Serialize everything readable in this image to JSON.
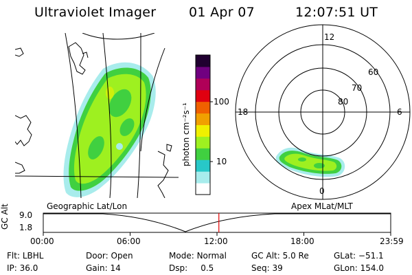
{
  "header": {
    "instrument": "Ultraviolet Imager",
    "date": "01 Apr 07",
    "time": "12:07:51 UT"
  },
  "colorbar": {
    "unit_label": "photon cm⁻²s⁻¹",
    "ticks": [
      {
        "value": 100,
        "label": "100"
      },
      {
        "value": 10,
        "label": "10"
      }
    ],
    "colors": [
      "#ffffff",
      "#a8ecec",
      "#28c8c8",
      "#40d040",
      "#9ef020",
      "#f0f000",
      "#f0a000",
      "#f06000",
      "#e00010",
      "#b00058",
      "#700080",
      "#200030"
    ]
  },
  "map_labels": {
    "geographic": "Geographic Lat/Lon",
    "apex": "Apex MLat/MLT"
  },
  "polar": {
    "mlt_labels": [
      {
        "hour": 12,
        "label": "12"
      },
      {
        "hour": 18,
        "label": "18"
      },
      {
        "hour": 6,
        "label": "6"
      },
      {
        "hour": 0,
        "label": "0"
      }
    ],
    "lat_labels": [
      {
        "lat": 60,
        "label": "60"
      },
      {
        "lat": 70,
        "label": "70"
      },
      {
        "lat": 80,
        "label": "80"
      }
    ]
  },
  "timeline": {
    "axis_label": "GC Alt",
    "y_ticks": [
      "9.0",
      "1.8"
    ],
    "y_range": [
      1.8,
      9.0
    ],
    "x_ticks": [
      "00:00",
      "06:00",
      "12:00",
      "18:00",
      "23:59"
    ],
    "current_time_hours": 12.13,
    "marker_color": "#e00000"
  },
  "info": {
    "row1": [
      {
        "label": "Flt:",
        "value": "LBHL"
      },
      {
        "label": "Door:",
        "value": "Open"
      },
      {
        "label": "Mode:",
        "value": "Normal"
      },
      {
        "label": "GC Alt:",
        "value": "5.0 Re"
      },
      {
        "label": "GLat:",
        "value": "−51.1"
      }
    ],
    "row2": [
      {
        "label": "IP:",
        "value": "36.0"
      },
      {
        "label": "Gain:",
        "value": "14"
      },
      {
        "label": "Dsp:",
        "value": "0.5"
      },
      {
        "label": "Seq:",
        "value": "39"
      },
      {
        "label": "GLon:",
        "value": "154.0"
      }
    ]
  }
}
